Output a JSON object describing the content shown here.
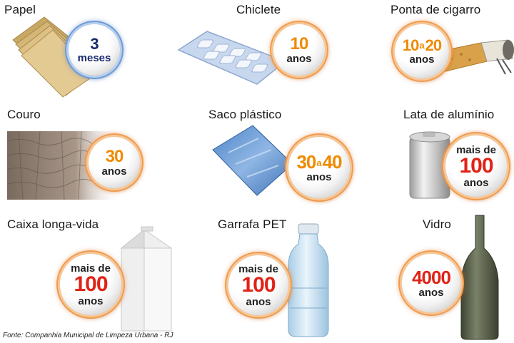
{
  "items": [
    {
      "label": "Papel",
      "prefix": "",
      "num_a": "3",
      "sep": "",
      "num_b": "",
      "unit": "meses"
    },
    {
      "label": "Chiclete",
      "prefix": "",
      "num_a": "10",
      "sep": "",
      "num_b": "",
      "unit": "anos"
    },
    {
      "label": "Ponta de cigarro",
      "prefix": "",
      "num_a": "10",
      "sep": "a",
      "num_b": "20",
      "unit": "anos"
    },
    {
      "label": "Couro",
      "prefix": "",
      "num_a": "30",
      "sep": "",
      "num_b": "",
      "unit": "anos"
    },
    {
      "label": "Saco plástico",
      "prefix": "",
      "num_a": "30",
      "sep": "a",
      "num_b": "40",
      "unit": "anos"
    },
    {
      "label": "Lata de alumínio",
      "prefix": "mais de",
      "num_a": "100",
      "sep": "",
      "num_b": "",
      "unit": "anos"
    },
    {
      "label": "Caixa longa-vida",
      "prefix": "mais de",
      "num_a": "100",
      "sep": "",
      "num_b": "",
      "unit": "anos"
    },
    {
      "label": "Garrafa PET",
      "prefix": "mais de",
      "num_a": "100",
      "sep": "",
      "num_b": "",
      "unit": "anos"
    },
    {
      "label": "Vidro",
      "prefix": "",
      "num_a": "4000",
      "sep": "",
      "num_b": "",
      "unit": "anos"
    }
  ],
  "footer": "Fonte: Companhia Municipal de Limpeza Urbana - RJ",
  "colors": {
    "orange": "#f08a00",
    "red": "#e02316",
    "navy": "#1a2a6c"
  },
  "icons": [
    "paper-stack-icon",
    "gum-pack-icon",
    "cigarette-butt-icon",
    "leather-texture-icon",
    "plastic-bag-icon",
    "aluminum-can-icon",
    "milk-carton-icon",
    "pet-bottle-icon",
    "glass-bottle-icon"
  ]
}
